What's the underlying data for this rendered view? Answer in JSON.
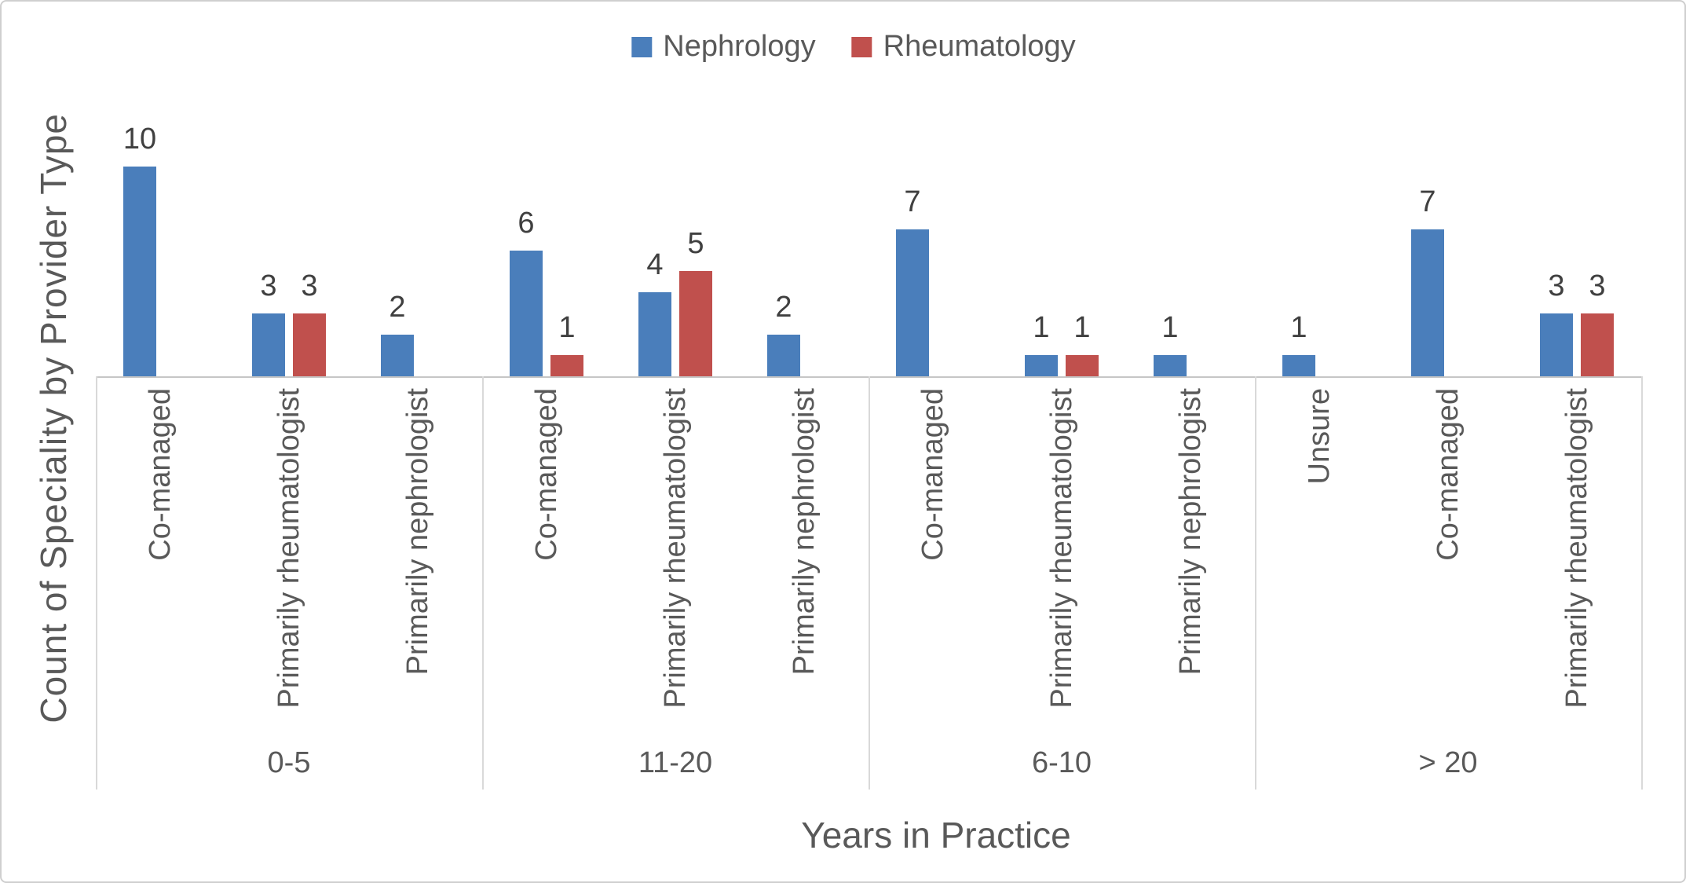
{
  "chart_data": {
    "type": "bar",
    "title": "",
    "xlabel": "Years in Practice",
    "ylabel": "Count of Speciality by Provider Type",
    "ylim": [
      0,
      10
    ],
    "grid": false,
    "legend_position": "top-center",
    "series_names": [
      "Nephrology",
      "Rheumatology"
    ],
    "legend": [
      {
        "name": "Nephrology",
        "color": "#4a7ebb"
      },
      {
        "name": "Rheumatology",
        "color": "#c0504d"
      }
    ],
    "groups": [
      {
        "label": "0-5",
        "categories": [
          {
            "label": "Co-managed",
            "nephrology": 10,
            "rheumatology": null
          },
          {
            "label": "Primarily rheumatologist",
            "nephrology": 3,
            "rheumatology": 3
          },
          {
            "label": "Primarily nephrologist",
            "nephrology": 2,
            "rheumatology": null
          }
        ]
      },
      {
        "label": "11-20",
        "categories": [
          {
            "label": "Co-managed",
            "nephrology": 6,
            "rheumatology": 1
          },
          {
            "label": "Primarily rheumatologist",
            "nephrology": 4,
            "rheumatology": 5
          },
          {
            "label": "Primarily nephrologist",
            "nephrology": 2,
            "rheumatology": null
          }
        ]
      },
      {
        "label": "6-10",
        "categories": [
          {
            "label": "Co-managed",
            "nephrology": 7,
            "rheumatology": null
          },
          {
            "label": "Primarily rheumatologist",
            "nephrology": 1,
            "rheumatology": 1
          },
          {
            "label": "Primarily nephrologist",
            "nephrology": 1,
            "rheumatology": null
          }
        ]
      },
      {
        "label": "> 20",
        "categories": [
          {
            "label": "Unsure",
            "nephrology": 1,
            "rheumatology": null
          },
          {
            "label": "Co-managed",
            "nephrology": 7,
            "rheumatology": null
          },
          {
            "label": "Primarily rheumatologist",
            "nephrology": 3,
            "rheumatology": 3
          }
        ]
      }
    ]
  }
}
